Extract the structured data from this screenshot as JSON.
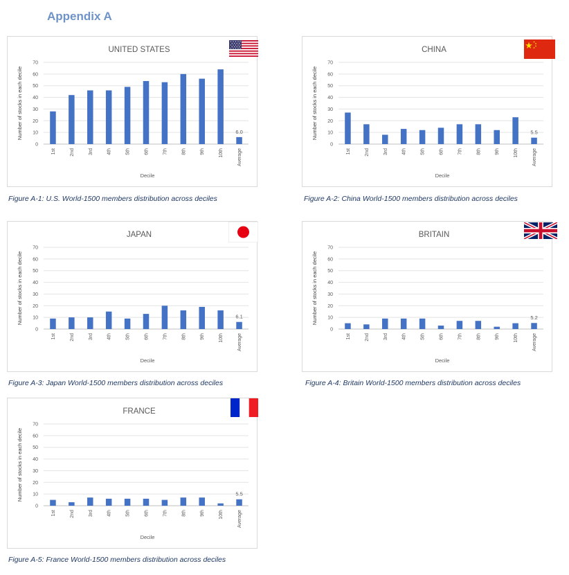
{
  "page": {
    "heading": "Appendix A"
  },
  "chart_data": [
    {
      "type": "bar",
      "title": "UNITED STATES",
      "xlabel": "Decile",
      "ylabel": "Number of stocks in each decile",
      "ylim": [
        0,
        70
      ],
      "yticks": [
        0,
        10,
        20,
        30,
        40,
        50,
        60,
        70
      ],
      "grid": true,
      "categories": [
        "1st",
        "2nd",
        "3rd",
        "4th",
        "5th",
        "6th",
        "7th",
        "8th",
        "9th",
        "10th",
        "Average"
      ],
      "values": [
        28,
        42,
        46,
        46,
        49,
        54,
        53,
        60,
        56,
        64,
        6.0
      ],
      "data_label": "6.0",
      "bar_color": "#4472c4",
      "flag": "us-flag",
      "caption": "Figure A-1: U.S. World-1500 members distribution across deciles"
    },
    {
      "type": "bar",
      "title": "CHINA",
      "xlabel": "Decile",
      "ylabel": "Number of stocks in each decile",
      "ylim": [
        0,
        70
      ],
      "yticks": [
        0,
        10,
        20,
        30,
        40,
        50,
        60,
        70
      ],
      "grid": true,
      "categories": [
        "1st",
        "2nd",
        "3rd",
        "4th",
        "5th",
        "6th",
        "7th",
        "8th",
        "9th",
        "10th",
        "Average"
      ],
      "values": [
        27,
        17,
        8,
        13,
        12,
        14,
        17,
        17,
        12,
        23,
        5.5
      ],
      "data_label": "5.5",
      "bar_color": "#4472c4",
      "flag": "china-flag",
      "caption": "Figure A-2: China World-1500 members distribution across deciles"
    },
    {
      "type": "bar",
      "title": "JAPAN",
      "xlabel": "Decile",
      "ylabel": "Number of stocks in each decile",
      "ylim": [
        0,
        70
      ],
      "yticks": [
        0,
        10,
        20,
        30,
        40,
        50,
        60,
        70
      ],
      "grid": true,
      "categories": [
        "1st",
        "2nd",
        "3rd",
        "4th",
        "5th",
        "6th",
        "7th",
        "8th",
        "9th",
        "10th",
        "Average"
      ],
      "values": [
        9,
        10,
        10,
        15,
        9,
        13,
        20,
        16,
        19,
        16,
        6.1
      ],
      "data_label": "6.1",
      "bar_color": "#4472c4",
      "flag": "japan-flag",
      "caption": "Figure A-3: Japan World-1500 members distribution across deciles"
    },
    {
      "type": "bar",
      "title": "BRITAIN",
      "xlabel": "Decile",
      "ylabel": "Number of stocks in each decile",
      "ylim": [
        0,
        70
      ],
      "yticks": [
        0,
        10,
        20,
        30,
        40,
        50,
        60,
        70
      ],
      "grid": true,
      "categories": [
        "1st",
        "2nd",
        "3rd",
        "4th",
        "5th",
        "6th",
        "7th",
        "8th",
        "9th",
        "10th",
        "Average"
      ],
      "values": [
        5,
        4,
        9,
        9,
        9,
        3,
        7,
        7,
        2,
        5,
        5.2
      ],
      "data_label": "5.2",
      "bar_color": "#4472c4",
      "flag": "uk-flag",
      "caption": "Figure A-4: Britain World-1500 members distribution across deciles"
    },
    {
      "type": "bar",
      "title": "FRANCE",
      "xlabel": "Decile",
      "ylabel": "Number of stocks in each decile",
      "ylim": [
        0,
        70
      ],
      "yticks": [
        0,
        10,
        20,
        30,
        40,
        50,
        60,
        70
      ],
      "grid": true,
      "categories": [
        "1st",
        "2nd",
        "3rd",
        "4th",
        "5th",
        "6th",
        "7th",
        "8th",
        "9th",
        "10th",
        "Average"
      ],
      "values": [
        5,
        3,
        7,
        6,
        6,
        6,
        5,
        7,
        7,
        2,
        5.5
      ],
      "data_label": "5.5",
      "bar_color": "#4472c4",
      "flag": "france-flag",
      "caption": "Figure A-5: France World-1500 members distribution across deciles"
    }
  ]
}
